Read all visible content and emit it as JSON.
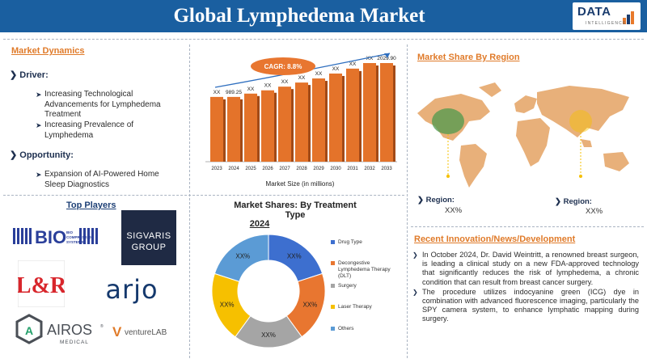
{
  "header": {
    "title": "Global Lymphedema Market"
  },
  "logo": {
    "word": "DATA",
    "sub": "INTELLIGENCE"
  },
  "dynamics": {
    "title": "Market Dynamics",
    "driver_label": "Driver:",
    "drivers": [
      "Increasing Technological Advancements for Lymphedema Treatment",
      "Increasing Prevalence of Lymphedema"
    ],
    "opportunity_label": "Opportunity:",
    "opportunities": [
      "Expansion of AI-Powered Home Sleep Diagnostics"
    ]
  },
  "chart_data": {
    "type": "bar",
    "categories": [
      "2023",
      "2024",
      "2025",
      "2026",
      "2027",
      "2028",
      "2029",
      "2030",
      "2031",
      "2032",
      "2033"
    ],
    "value_labels": [
      "XX",
      "989.25",
      "XX",
      "XX",
      "XX",
      "XX",
      "XX",
      "XX",
      "XX",
      "XX",
      "2029.90"
    ],
    "values": [
      989.25,
      989.25,
      1070,
      1150,
      1240,
      1340,
      1440,
      1560,
      1680,
      1820,
      2029.9
    ],
    "xlabel": "Market Size (in millions)",
    "cagr_label": "CAGR: 8.8%",
    "bar_color": "#e4732a"
  },
  "top_players": {
    "title": "Top Players",
    "names": [
      "BIO COMPRESSION SYSTEMS",
      "SIGVARIS",
      "GROUP",
      "L&R",
      "arjo",
      "AIROS",
      "MEDICAL",
      "ventureLAB"
    ]
  },
  "treatment": {
    "title": "Market Shares: By Treatment Type",
    "year": "2024",
    "segments": [
      {
        "name": "Drug Type",
        "label": "XX%",
        "share": 20,
        "color": "#3d6fcf"
      },
      {
        "name": "Decongestive Lymphedema Therapy (DLT)",
        "label": "XX%",
        "share": 20,
        "color": "#e87630"
      },
      {
        "name": "Surgery",
        "label": "XX%",
        "share": 20,
        "color": "#a5a5a5"
      },
      {
        "name": "Laser Therapy",
        "label": "XX%",
        "share": 20,
        "color": "#f6c000"
      },
      {
        "name": "Others",
        "label": "XX%",
        "share": 20,
        "color": "#5b9bd5"
      }
    ]
  },
  "region": {
    "title": "Market Share By Region",
    "left_label": "Region:",
    "left_value": "XX%",
    "right_label": "Region:",
    "right_value": "XX%"
  },
  "innovation": {
    "title": "Recent Innovation/News/Development",
    "items": [
      "In October 2024, Dr. David Weintritt, a renowned breast surgeon, is leading a clinical study on a new FDA-approved technology that significantly reduces the risk of lymphedema, a chronic condition that can result from breast cancer surgery.",
      "The procedure utilizes indocyanine green (ICG) dye in combination with advanced fluorescence imaging, particularly the SPY camera system, to enhance lymphatic mapping during surgery."
    ]
  }
}
